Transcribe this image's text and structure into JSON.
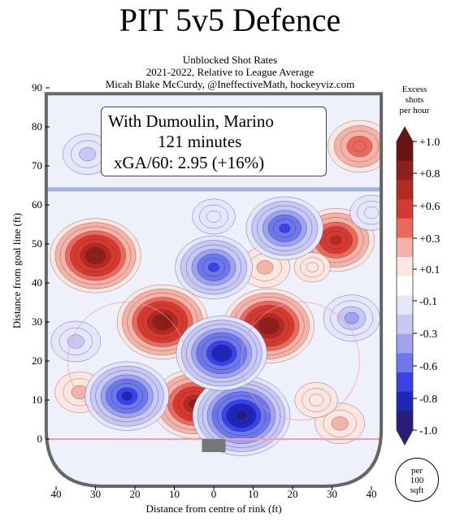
{
  "header": {
    "title": "PIT 5v5 Defence",
    "subtitle_1": "Unblocked Shot Rates",
    "subtitle_2": "2021-2022, Relative to League Average",
    "subtitle_3": "Micah Blake McCurdy, @IneffectiveMath, hockeyviz.com"
  },
  "info": {
    "line_1": "With Dumoulin, Marino",
    "line_2": "121 minutes",
    "line_3": "xGA/60: 2.95 (+16%)"
  },
  "colorbar": {
    "title_1": "Excess",
    "title_2": "shots",
    "title_3": "per hour",
    "ticks": [
      "+1.0",
      "+0.8",
      "+0.6",
      "+0.3",
      "+0.1",
      "-0.1",
      "-0.3",
      "-0.6",
      "-0.8",
      "-1.0"
    ],
    "colors": [
      "#6a1313",
      "#8e1f1c",
      "#b12a24",
      "#d53a32",
      "#e96a5c",
      "#f4b3a9",
      "#fce6e2",
      "#ffffff",
      "#e6e6fa",
      "#c7c8f4",
      "#9fa3ee",
      "#6f78ea",
      "#3a44e6",
      "#1f26b8",
      "#2d1b7a"
    ],
    "per_unit_1": "per",
    "per_unit_2": "100",
    "per_unit_3": "sqft"
  },
  "chart_data": {
    "type": "heatmap",
    "title": "PIT 5v5 Defence",
    "xlabel": "Distance from centre of rink (ft)",
    "ylabel": "Distance from goal line (ft)",
    "x_ticks": [
      "40",
      "30",
      "20",
      "10",
      "0",
      "10",
      "20",
      "30",
      "40"
    ],
    "y_ticks": [
      "0",
      "10",
      "20",
      "30",
      "40",
      "50",
      "60",
      "70",
      "80",
      "90"
    ],
    "xlim": [
      -42,
      42
    ],
    "ylim": [
      -5,
      90
    ],
    "colorbar_range": [
      -1.0,
      1.0
    ],
    "hotspots": [
      {
        "x": -30,
        "y": 47,
        "value": 0.9
      },
      {
        "x": -13,
        "y": 30,
        "value": 0.9
      },
      {
        "x": 14,
        "y": 29,
        "value": 0.9
      },
      {
        "x": -5,
        "y": 9,
        "value": 0.8
      },
      {
        "x": 31,
        "y": 51,
        "value": 0.7
      },
      {
        "x": 37,
        "y": 75,
        "value": 0.5
      },
      {
        "x": -12,
        "y": 73,
        "value": 0.3
      },
      {
        "x": -34,
        "y": 12,
        "value": 0.3
      },
      {
        "x": 32,
        "y": 4,
        "value": 0.3
      },
      {
        "x": 13,
        "y": 44,
        "value": 0.3
      },
      {
        "x": 26,
        "y": 10,
        "value": 0.2
      },
      {
        "x": 25,
        "y": 44,
        "value": 0.1
      },
      {
        "x": 7,
        "y": 6,
        "value": -1.0
      },
      {
        "x": 2,
        "y": 22,
        "value": -0.9
      },
      {
        "x": 0,
        "y": 44,
        "value": -0.7
      },
      {
        "x": -22,
        "y": 11,
        "value": -0.8
      },
      {
        "x": 18,
        "y": 54,
        "value": -0.7
      },
      {
        "x": 35,
        "y": 31,
        "value": -0.4
      },
      {
        "x": -35,
        "y": 25,
        "value": -0.3
      },
      {
        "x": 0,
        "y": 57,
        "value": -0.2
      },
      {
        "x": -32,
        "y": 73,
        "value": -0.3
      },
      {
        "x": 40,
        "y": 58,
        "value": -0.2
      }
    ]
  }
}
